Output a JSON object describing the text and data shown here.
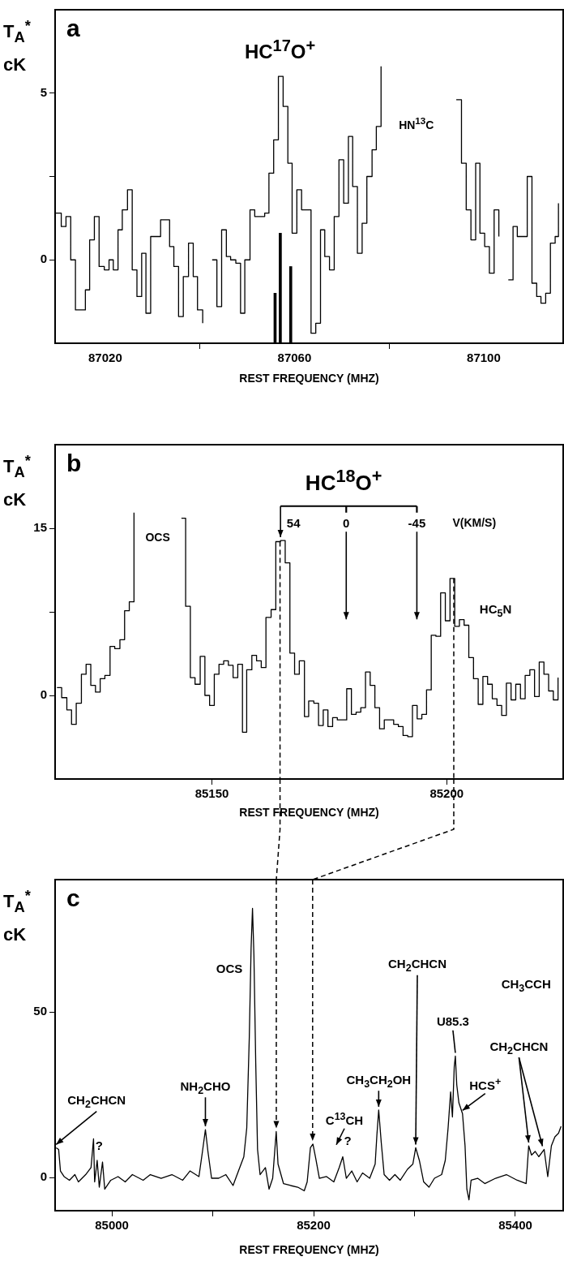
{
  "chart_data": [
    {
      "type": "step",
      "title": "a",
      "xlabel": "REST FREQUENCY (MHZ)",
      "ylabel": "T$_{A}$$^{*}$ cK",
      "xlim": [
        87009.4,
        87116.8
      ],
      "ylim": [
        -2.5,
        7.5
      ],
      "xticks": [
        87020,
        87060,
        87100
      ],
      "yticks": [
        0,
        {
          "value": 2.5,
          "label": null
        },
        5
      ],
      "series": [
        {
          "color": "#000000",
          "x": [
            87009.4,
            87010.7,
            87011.7,
            87012.7,
            87013.7,
            87015.8,
            87016.7,
            87017.7,
            87018.7,
            87019.8,
            87020.8,
            87021.7,
            87022.7,
            87023.6,
            87024.7,
            87025.7,
            87026.7,
            87027.7,
            87028.6,
            87029.6,
            87030.6,
            87031.7,
            87033.6,
            87034.5,
            87035.5,
            87036.5,
            87037.6,
            87038.6,
            87039.5,
            87040.6,
            87041.6,
            87042.6,
            87043.6,
            87044.6,
            87045.6,
            87046.5,
            87047.6,
            87048.6,
            87049.5,
            87050.6,
            87051.6,
            87052.6,
            87053.7,
            87054.6,
            87055.6,
            87056.6,
            87057.6,
            87058.6,
            87059.5,
            87060.5,
            87061.5,
            87063.5,
            87064.5,
            87065.5,
            87066.4,
            87067.4,
            87068.4,
            87069.4,
            87070.4,
            87071.4,
            87072.3,
            87073.3,
            87074.3,
            87075.3,
            87076.4,
            87077.3,
            87078.3,
            87079.3,
            87094.2,
            87095.3,
            87096.3,
            87097.3,
            87098.3,
            87099.2,
            87100.2,
            87101.2,
            87102.2,
            87103.2,
            87104.2,
            87105.2,
            87106.2,
            87107.1,
            87109.2,
            87110.2,
            87111.2,
            87112.1,
            87113.1,
            87114.1,
            87115.1,
            87115.8
          ],
          "values": [
            1.4,
            1.0,
            1.3,
            0.0,
            -1.5,
            -0.9,
            0.6,
            1.3,
            -0.2,
            -0.3,
            0.0,
            -0.3,
            0.9,
            1.5,
            2.1,
            -0.3,
            -1.1,
            0.2,
            -1.6,
            0.7,
            0.7,
            1.2,
            0.4,
            -0.2,
            -1.7,
            -0.5,
            0.5,
            -0.5,
            -1.5,
            -1.9,
            null,
            0.0,
            -1.4,
            0.9,
            0.1,
            0.0,
            -0.1,
            -1.6,
            0.0,
            1.5,
            1.3,
            1.3,
            1.4,
            2.6,
            3.6,
            5.5,
            4.6,
            2.9,
            0.8,
            2.1,
            1.5,
            -2.2,
            -1.9,
            0.9,
            0.1,
            -0.3,
            1.3,
            3.0,
            1.7,
            3.7,
            2.2,
            0.2,
            1.1,
            2.5,
            3.3,
            4.0,
            5.8,
            null,
            4.8,
            2.9,
            1.5,
            0.6,
            2.9,
            0.8,
            0.4,
            -0.4,
            1.5,
            0.7,
            null,
            -0.6,
            1.0,
            0.7,
            2.5,
            -0.7,
            -1.1,
            -1.3,
            -1.0,
            0.5,
            0.7,
            1.7
          ]
        },
        {
          "type": "bar",
          "color": "#000000",
          "x": [
            87055.9,
            87057.0,
            87059.2
          ],
          "base": [
            -2.5,
            -2.5,
            -2.5
          ],
          "values": [
            1.5,
            3.3,
            2.3
          ]
        }
      ],
      "annotations": [
        {
          "text": "HC$^{17}$O$^{+}$",
          "x": 87056.6,
          "y": 5.5
        },
        "HN$^{13}$C"
      ]
    },
    {
      "type": "step",
      "title": "b",
      "xlabel": "REST FREQUENCY (MHZ)",
      "ylabel": "T$_{A}$$^{*}$ cK",
      "xlim": [
        85116.6,
        85224.8
      ],
      "ylim": [
        -7.5,
        22.5
      ],
      "xticks": [
        85150,
        85200
      ],
      "yticks": [
        0,
        {
          "value": 7.5,
          "label": null
        },
        15
      ],
      "color": "#000000",
      "x": [
        85117.0,
        85118.0,
        85119.1,
        85120.1,
        85121.1,
        85122.2,
        85123.2,
        85124.2,
        85125.2,
        85126.2,
        85127.2,
        85128.3,
        85129.3,
        85130.4,
        85131.4,
        85132.4,
        85133.4,
        85134.4,
        85143.5,
        85144.4,
        85145.4,
        85146.4,
        85147.5,
        85148.5,
        85149.5,
        85150.5,
        85151.5,
        85152.5,
        85153.5,
        85154.5,
        85155.5,
        85156.5,
        85157.4,
        85158.5,
        85159.5,
        85160.5,
        85161.5,
        85162.6,
        85163.6,
        85164.6,
        85165.6,
        85166.6,
        85167.6,
        85168.6,
        85169.7,
        85170.6,
        85171.7,
        85172.7,
        85173.7,
        85174.7,
        85175.7,
        85176.7,
        85177.7,
        85178.7,
        85179.7,
        85180.7,
        85181.7,
        85182.7,
        85183.7,
        85184.7,
        85185.7,
        85186.7,
        85187.7,
        85188.7,
        85189.7,
        85190.7,
        85191.7,
        85192.7,
        85193.7,
        85194.7,
        85195.7,
        85196.7,
        85197.7,
        85198.7,
        85199.7,
        85200.7,
        85201.7,
        85202.7,
        85203.7,
        85204.7,
        85205.7,
        85206.7,
        85207.7,
        85208.7,
        85209.7,
        85210.7,
        85211.7,
        85212.7,
        85213.7,
        85214.7,
        85215.7,
        85216.7,
        85217.7,
        85218.7,
        85219.7,
        85220.7,
        85221.7,
        85222.7,
        85223.7
      ],
      "values": [
        0.7,
        -0.2,
        -1.3,
        -2.6,
        -0.7,
        1.9,
        2.8,
        0.9,
        0.3,
        1.5,
        1.8,
        4.4,
        4.2,
        5.0,
        7.6,
        8.4,
        16.4,
        null,
        15.9,
        8.0,
        1.6,
        1.0,
        3.5,
        0.0,
        -0.9,
        1.9,
        2.8,
        3.1,
        2.7,
        1.6,
        2.8,
        -3.3,
        2.3,
        3.6,
        3.1,
        2.5,
        7.0,
        7.7,
        13.8,
        13.9,
        11.9,
        3.8,
        1.9,
        3.1,
        -1.9,
        -0.5,
        -0.7,
        -2.7,
        -1.3,
        -2.8,
        -2.0,
        -2.2,
        -2.2,
        0.6,
        -1.7,
        -1.5,
        -1.1,
        2.1,
        0.9,
        -1.1,
        -3.0,
        -2.2,
        -2.2,
        -2.6,
        -2.8,
        -3.6,
        -3.7,
        -0.9,
        -2.1,
        -1.7,
        0.5,
        5.4,
        5.3,
        9.2,
        6.7,
        10.5,
        6.2,
        6.8,
        6.3,
        3.4,
        1.5,
        -0.8,
        1.7,
        1.0,
        -0.3,
        -0.9,
        -1.8,
        1.1,
        -0.4,
        1.0,
        -0.3,
        1.8,
        2.3,
        -0.1,
        3.0,
        1.9,
        0.4,
        -0.4,
        1.6
      ],
      "ref_lines": [
        {
          "axis": "x",
          "value": 85164.5,
          "line_style": "dashed"
        },
        {
          "axis": "x",
          "value": 85201.5,
          "line_style": "dashed"
        }
      ],
      "annotations": [
        "OCS",
        "HC$^{18}$O$^{+}$",
        {
          "text": "54",
          "x": 85164.6,
          "y": 13.9
        },
        "0",
        "-45",
        "V(KM/S)",
        "HC$_{5}$N"
      ]
    },
    {
      "type": "line",
      "title": "c",
      "xlabel": "REST FREQUENCY (MHZ)",
      "ylabel": "T$_{A}$$^{*}$ cK",
      "xlim": [
        84943.7,
        85447.4
      ],
      "ylim": [
        -10,
        90
      ],
      "xticks": [
        85000,
        {
          "value": 85100,
          "label": null
        },
        85200,
        {
          "value": 85300,
          "label": null
        },
        85400
      ],
      "yticks": [
        0,
        50
      ],
      "color": "#000000",
      "x": [
        84944.7,
        84947.2,
        84949.0,
        84952.6,
        84957.9,
        84963.3,
        84966.8,
        84974.0,
        84979.3,
        84981.8,
        84982.9,
        84985.4,
        84987.5,
        84990.7,
        84992.9,
        84998.9,
        85006.1,
        85013.2,
        85020.3,
        85031.0,
        85038.1,
        85048.8,
        85059.5,
        85070.2,
        85077.4,
        85086.3,
        85089.8,
        85092.7,
        85095.2,
        85098.8,
        85105.9,
        85113.0,
        85120.1,
        85125.5,
        85130.8,
        85133.7,
        85136.2,
        85138.0,
        85139.4,
        85140.8,
        85142.6,
        85144.4,
        85146.9,
        85152.2,
        85155.8,
        85159.4,
        85162.9,
        85164.7,
        85170.1,
        85177.2,
        85184.3,
        85190.7,
        85193.6,
        85196.8,
        85199.3,
        85202.1,
        85205.7,
        85212.8,
        85220.0,
        85225.3,
        85228.9,
        85232.4,
        85237.8,
        85243.1,
        85248.5,
        85255.6,
        85261.0,
        85262.7,
        85264.5,
        85267.0,
        85269.9,
        85275.2,
        85280.6,
        85285.9,
        85293.0,
        85298.4,
        85301.2,
        85304.8,
        85309.1,
        85314.4,
        85319.8,
        85326.9,
        85330.5,
        85333.3,
        85335.8,
        85337.6,
        85339.4,
        85340.5,
        85341.9,
        85344.0,
        85347.6,
        85350.1,
        85351.9,
        85354.0,
        85356.1,
        85362.6,
        85369.7,
        85380.4,
        85391.1,
        85401.8,
        85410.7,
        85413.2,
        85416.0,
        85419.6,
        85423.2,
        85428.5,
        85432.1,
        85435.7,
        85439.2,
        85442.8,
        85445.3
      ],
      "values": [
        9.0,
        8.5,
        2.0,
        0.3,
        -0.8,
        0.9,
        -1.3,
        0.9,
        3.0,
        11.7,
        -1.3,
        5.2,
        -2.9,
        4.7,
        -3.5,
        -0.8,
        0.3,
        -1.3,
        0.9,
        -0.8,
        0.9,
        -0.2,
        0.9,
        -0.8,
        2.0,
        0.3,
        7.9,
        14.5,
        7.9,
        -0.2,
        -0.2,
        0.9,
        -2.4,
        2.0,
        6.3,
        15.0,
        42.2,
        69.3,
        81.3,
        67.2,
        34.6,
        8.5,
        0.9,
        3.0,
        -3.5,
        -0.2,
        13.9,
        4.1,
        -1.8,
        -2.4,
        -2.9,
        -4.0,
        -1.3,
        9.0,
        10.1,
        5.8,
        -0.2,
        0.3,
        -1.3,
        3.0,
        6.3,
        -0.2,
        2.0,
        -1.3,
        1.4,
        -0.2,
        4.1,
        12.8,
        20.4,
        10.7,
        0.9,
        -0.8,
        0.9,
        -0.8,
        2.5,
        4.1,
        9.0,
        5.2,
        -1.3,
        -2.9,
        -0.2,
        0.9,
        5.2,
        15.0,
        25.9,
        18.3,
        33.5,
        36.7,
        28.0,
        22.6,
        19.3,
        9.6,
        -3.5,
        -6.7,
        -0.8,
        -0.2,
        -1.8,
        -0.2,
        0.9,
        -0.8,
        -1.8,
        9.6,
        6.8,
        7.9,
        6.3,
        8.5,
        0.3,
        9.6,
        12.3,
        13.4,
        15.5
      ],
      "ref_lines": [
        {
          "axis": "x",
          "value": 85163,
          "line_style": "dashed"
        },
        {
          "axis": "x",
          "value": 85199,
          "line_style": "dashed"
        }
      ],
      "annotations": [
        {
          "text": "CH$_{2}$CHCN",
          "x": 84944.7,
          "y": 9.0
        },
        {
          "text": "?",
          "x": 84981.8,
          "y": 11.7
        },
        {
          "text": "NH$_{2}$CHO",
          "x": 85092.7,
          "y": 14.5
        },
        "OCS",
        {
          "text": "C$^{13}$CH",
          "x": 85228.9,
          "y": 6.3
        },
        {
          "text": "?",
          "x": 85228.9,
          "y": 6.3
        },
        {
          "text": "CH$_{3}$CH$_{2}$OH",
          "x": 85264.5,
          "y": 20.4
        },
        {
          "text": "CH$_{2}$CHCN",
          "x": 85301.2,
          "y": 9.0
        },
        {
          "text": "U85.3",
          "x": 85340.5,
          "y": 36.7
        },
        {
          "text": "HCS$^{+}$",
          "x": 85347.6,
          "y": 19.3
        },
        "CH$_{3}$CCH",
        {
          "text": "CH$_{2}$CHCN",
          "x": 85413.2,
          "y": 9.6
        }
      ]
    }
  ]
}
